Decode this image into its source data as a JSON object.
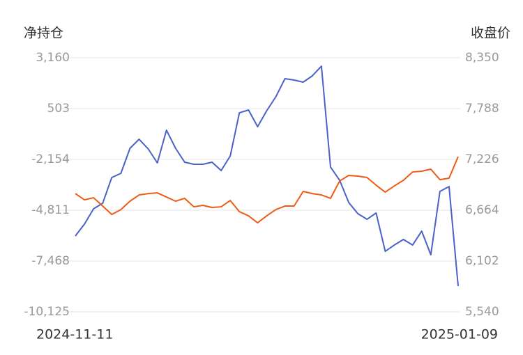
{
  "chart_data": {
    "type": "line",
    "y_title": "净持仓",
    "y2_title": "收盘价",
    "categories": [
      "2024-11-11",
      null,
      null,
      null,
      null,
      null,
      null,
      null,
      null,
      null,
      null,
      null,
      null,
      null,
      null,
      null,
      null,
      null,
      null,
      null,
      null,
      null,
      null,
      null,
      null,
      null,
      null,
      null,
      null,
      null,
      null,
      null,
      null,
      null,
      null,
      null,
      null,
      null,
      null,
      null,
      null,
      null,
      "2025-01-09"
    ],
    "ylim": [
      -10125,
      3160
    ],
    "yticks": [
      {
        "value": 3160,
        "label": "3,160"
      },
      503,
      {
        "value": -2154,
        "label": "-2,154"
      },
      {
        "value": -4811,
        "label": "-4,811"
      },
      {
        "value": -7468,
        "label": "-7,468"
      },
      {
        "value": -10125,
        "label": "-10,125"
      }
    ],
    "y2lim": [
      5540,
      8350
    ],
    "y2ticks": [
      {
        "value": 8350,
        "label": "8,350"
      },
      {
        "value": 7788,
        "label": "7,788"
      },
      {
        "value": 7226,
        "label": "7,226"
      },
      {
        "value": 6664,
        "label": "6,664"
      },
      {
        "value": 6102,
        "label": "6,102"
      },
      {
        "value": 5540,
        "label": "5,540"
      }
    ],
    "grid": true,
    "series": [
      {
        "color": "#4a62c8",
        "axis": "y",
        "values": [
          -6158,
          -5540,
          -4739,
          -4448,
          -3101,
          -2882,
          -1572,
          -1099,
          -1608,
          -2336,
          -626,
          -1572,
          -2300,
          -2409,
          -2409,
          -2300,
          -2737,
          -1972,
          284,
          430,
          -444,
          394,
          1122,
          2068,
          1995,
          1886,
          2214,
          2723,
          -2555,
          -3246,
          -4411,
          -4994,
          -5285,
          -4957,
          -6959,
          -6632,
          -6340,
          -6632,
          -5904,
          -7141,
          -3829,
          -3574,
          -8779
        ]
      },
      {
        "color": "#f05a14",
        "axis": "y2",
        "values": [
          6848,
          6779,
          6802,
          6710,
          6617,
          6671,
          6764,
          6833,
          6848,
          6856,
          6810,
          6764,
          6795,
          6702,
          6718,
          6694,
          6702,
          6771,
          6648,
          6602,
          6525,
          6602,
          6671,
          6710,
          6710,
          6872,
          6848,
          6833,
          6795,
          6987,
          7049,
          7041,
          7026,
          6941,
          6864,
          6933,
          6995,
          7087,
          7095,
          7118,
          7002,
          7018,
          7257
        ]
      }
    ]
  }
}
